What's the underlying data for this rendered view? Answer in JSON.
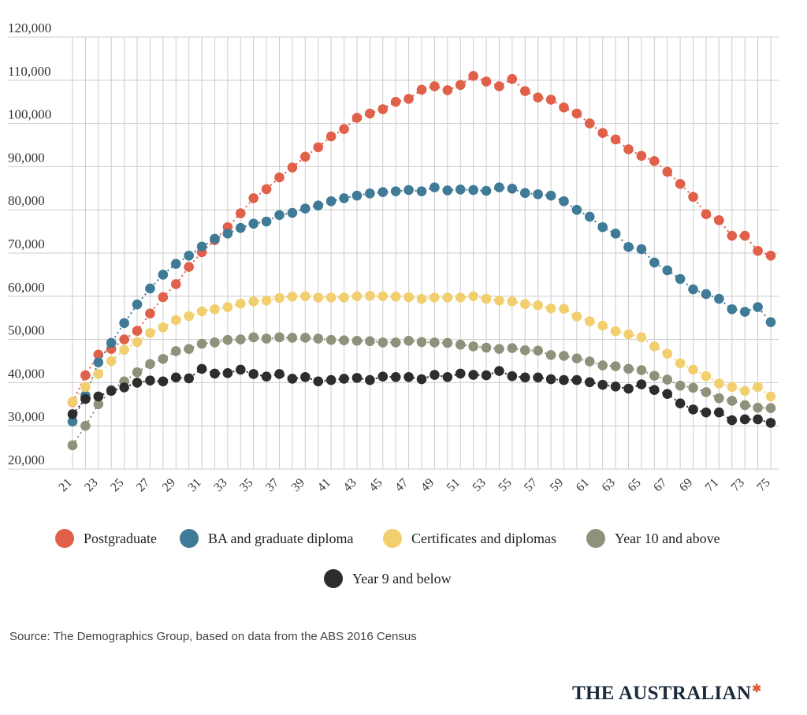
{
  "chart_data": {
    "type": "scatter",
    "title": "",
    "xlabel": "",
    "ylabel": "",
    "ylim": [
      20000,
      120000
    ],
    "y_ticks": [
      {
        "value": 20000,
        "label": "20,000"
      },
      {
        "value": 30000,
        "label": "30,000"
      },
      {
        "value": 40000,
        "label": "40,000"
      },
      {
        "value": 50000,
        "label": "50,000"
      },
      {
        "value": 60000,
        "label": "60,000"
      },
      {
        "value": 70000,
        "label": "70,000"
      },
      {
        "value": 80000,
        "label": "80,000"
      },
      {
        "value": 90000,
        "label": "90,000"
      },
      {
        "value": 100000,
        "label": "100,000"
      },
      {
        "value": 110000,
        "label": "110,000"
      },
      {
        "value": 120000,
        "label": "120,000"
      }
    ],
    "x_ticks": [
      "21",
      "23",
      "25",
      "27",
      "29",
      "31",
      "33",
      "35",
      "37",
      "39",
      "41",
      "43",
      "45",
      "47",
      "49",
      "51",
      "53",
      "55",
      "57",
      "59",
      "61",
      "63",
      "65",
      "67",
      "69",
      "71",
      "73",
      "75"
    ],
    "x": [
      21,
      22,
      23,
      24,
      25,
      26,
      27,
      28,
      29,
      30,
      31,
      32,
      33,
      34,
      35,
      36,
      37,
      38,
      39,
      40,
      41,
      42,
      43,
      44,
      45,
      46,
      47,
      48,
      49,
      50,
      51,
      52,
      53,
      54,
      55,
      56,
      57,
      58,
      59,
      60,
      61,
      62,
      63,
      64,
      65,
      66,
      67,
      68,
      69,
      70,
      71,
      72,
      73,
      74,
      75
    ],
    "grid": true,
    "legend_position": "bottom",
    "series": [
      {
        "name": "Postgraduate",
        "color": "#e0604a",
        "values": [
          35500,
          41700,
          46500,
          47800,
          50000,
          52000,
          56000,
          59800,
          62800,
          66800,
          70200,
          73000,
          76000,
          79200,
          82700,
          84800,
          87500,
          89800,
          92300,
          94500,
          97000,
          98700,
          101300,
          102300,
          103300,
          105000,
          105700,
          107800,
          108600,
          107700,
          108900,
          111000,
          109700,
          108600,
          110300,
          107500,
          106000,
          105500,
          103700,
          102300,
          100000,
          97800,
          96300,
          94000,
          92500,
          91300,
          88800,
          86000,
          83000,
          79000,
          77600,
          74000,
          74000,
          70500,
          69400
        ]
      },
      {
        "name": "BA and graduate diploma",
        "color": "#3f7a96",
        "values": [
          31000,
          37000,
          44700,
          49200,
          53800,
          58100,
          61800,
          65000,
          67500,
          69400,
          71500,
          73300,
          74500,
          75800,
          76800,
          77300,
          78800,
          79300,
          80300,
          81000,
          82000,
          82700,
          83300,
          83800,
          84100,
          84300,
          84600,
          84300,
          85200,
          84500,
          84700,
          84600,
          84400,
          85200,
          84900,
          83900,
          83600,
          83300,
          82000,
          80000,
          78400,
          76000,
          74500,
          71400,
          70900,
          67800,
          66000,
          64000,
          61600,
          60500,
          59400,
          57000,
          56400,
          57500,
          54000
        ]
      },
      {
        "name": "Certificates and diplomas",
        "color": "#f2cf6e",
        "values": [
          35600,
          39000,
          42000,
          45000,
          47600,
          49400,
          51500,
          52800,
          54500,
          55400,
          56500,
          57000,
          57500,
          58300,
          58800,
          59000,
          59600,
          59900,
          60000,
          59700,
          59700,
          59700,
          60000,
          60100,
          60000,
          59900,
          59800,
          59400,
          59700,
          59700,
          59700,
          60000,
          59400,
          59000,
          58800,
          58200,
          57900,
          57200,
          57100,
          55300,
          54200,
          53200,
          51900,
          51200,
          50500,
          48400,
          46700,
          44500,
          43000,
          41500,
          39800,
          39000,
          38100,
          39000,
          36800
        ]
      },
      {
        "name": "Year 10 and above",
        "color": "#8f917a",
        "values": [
          25500,
          30000,
          35000,
          38300,
          40300,
          42400,
          44300,
          45500,
          47300,
          47800,
          49000,
          49300,
          49900,
          50000,
          50500,
          50200,
          50500,
          50400,
          50400,
          50200,
          49900,
          49800,
          49700,
          49600,
          49300,
          49300,
          49700,
          49400,
          49300,
          49200,
          48800,
          48400,
          48100,
          47800,
          48000,
          47500,
          47400,
          46400,
          46200,
          45600,
          44900,
          44000,
          43800,
          43200,
          42900,
          41600,
          40700,
          39300,
          38800,
          37800,
          36400,
          35800,
          34800,
          34200,
          34100
        ]
      },
      {
        "name": "Year 9 and below",
        "color": "#2d2d2d",
        "values": [
          32700,
          36200,
          36800,
          38100,
          38900,
          40000,
          40500,
          40300,
          41200,
          41000,
          43200,
          42100,
          42200,
          43000,
          42000,
          41400,
          42000,
          40900,
          41300,
          40300,
          40600,
          40900,
          41100,
          40600,
          41400,
          41300,
          41300,
          40800,
          41800,
          41300,
          42100,
          41800,
          41700,
          42700,
          41500,
          41200,
          41200,
          40800,
          40600,
          40600,
          40100,
          39500,
          39100,
          38600,
          39600,
          38300,
          37400,
          35200,
          33800,
          33100,
          33100,
          31300,
          31500,
          31500,
          30700
        ]
      }
    ]
  },
  "footer": {
    "source": "Source: The Demographics Group, based on data from the ABS 2016 Census",
    "brand": "THE AUSTRALIAN",
    "brand_mark": "✱"
  }
}
